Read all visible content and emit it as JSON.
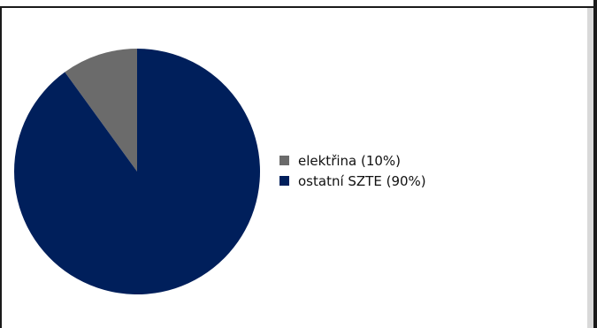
{
  "window": {
    "title": ""
  },
  "chart_data": {
    "type": "pie",
    "title": "",
    "slices": [
      {
        "label": "elektřina (10%)",
        "value": 10,
        "color": "#6b6b6b"
      },
      {
        "label": "ostatní SZTE (90%)",
        "value": 90,
        "color": "#001f5b"
      }
    ],
    "start_angle": "top",
    "direction": "counterclockwise",
    "legend_position": "right"
  }
}
